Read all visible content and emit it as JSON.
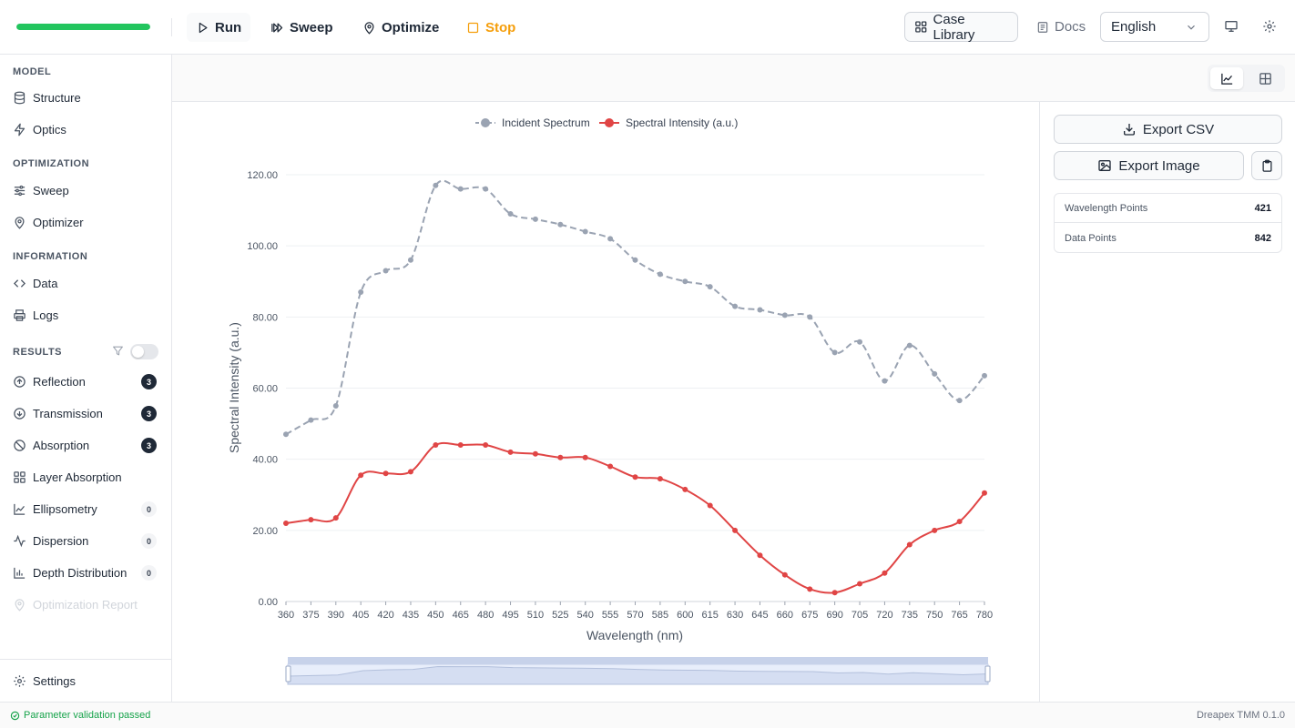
{
  "toolbar": {
    "progress": 1.0,
    "run_label": "Run",
    "sweep_label": "Sweep",
    "optimize_label": "Optimize",
    "stop_label": "Stop",
    "case_library_label": "Case Library",
    "docs_label": "Docs",
    "language": "English"
  },
  "sidebar": {
    "model_title": "MODEL",
    "model_items": [
      {
        "label": "Structure",
        "icon": "database-icon"
      },
      {
        "label": "Optics",
        "icon": "bolt-icon"
      }
    ],
    "optimization_title": "OPTIMIZATION",
    "optimization_items": [
      {
        "label": "Sweep",
        "icon": "sliders-icon"
      },
      {
        "label": "Optimizer",
        "icon": "pin-icon"
      }
    ],
    "information_title": "INFORMATION",
    "information_items": [
      {
        "label": "Data",
        "icon": "code-icon"
      },
      {
        "label": "Logs",
        "icon": "printer-icon"
      }
    ],
    "results_title": "RESULTS",
    "results_items": [
      {
        "label": "Reflection",
        "badge": "3"
      },
      {
        "label": "Transmission",
        "badge": "3"
      },
      {
        "label": "Absorption",
        "badge": "3"
      },
      {
        "label": "Layer Absorption",
        "badge": ""
      },
      {
        "label": "Ellipsometry",
        "badge": "0"
      },
      {
        "label": "Dispersion",
        "badge": "0"
      },
      {
        "label": "Depth Distribution",
        "badge": "0"
      },
      {
        "label": "Optimization Report",
        "badge": ""
      }
    ],
    "settings_label": "Settings"
  },
  "right_panel": {
    "export_csv_label": "Export CSV",
    "export_image_label": "Export Image",
    "stats": [
      {
        "label": "Wavelength Points",
        "value": "421"
      },
      {
        "label": "Data Points",
        "value": "842"
      }
    ]
  },
  "status": {
    "message": "Parameter validation passed",
    "version": "Dreapex TMM 0.1.0"
  },
  "chart_data": {
    "type": "line",
    "xlabel": "Wavelength (nm)",
    "ylabel": "Spectral Intensity (a.u.)",
    "ylim": [
      0,
      120
    ],
    "yticks": [
      "0.00",
      "20.00",
      "40.00",
      "60.00",
      "80.00",
      "100.00",
      "120.00"
    ],
    "x": [
      360,
      375,
      390,
      405,
      420,
      435,
      450,
      465,
      480,
      495,
      510,
      525,
      540,
      555,
      570,
      585,
      600,
      615,
      630,
      645,
      660,
      675,
      690,
      705,
      720,
      735,
      750,
      765,
      780
    ],
    "legend_position": "top-center",
    "grid": true,
    "series": [
      {
        "name": "Incident Spectrum",
        "color": "#9aa3b2",
        "dashed": true,
        "values": [
          47,
          51,
          55,
          87,
          93,
          96,
          117,
          116,
          116,
          109,
          107.5,
          106,
          104,
          102,
          96,
          92,
          90,
          88.5,
          83,
          82,
          80.5,
          80,
          70,
          73,
          62,
          72,
          64,
          56.5,
          63.5
        ]
      },
      {
        "name": "Spectral Intensity (a.u.)",
        "color": "#e04545",
        "dashed": false,
        "values": [
          22,
          23,
          23.5,
          35.5,
          36,
          36.5,
          44,
          44,
          44,
          42,
          41.5,
          40.5,
          40.5,
          38,
          35,
          34.5,
          31.5,
          27,
          20,
          13,
          7.5,
          3.5,
          2.5,
          5,
          8,
          16,
          20,
          22.5,
          30.5
        ]
      }
    ]
  }
}
